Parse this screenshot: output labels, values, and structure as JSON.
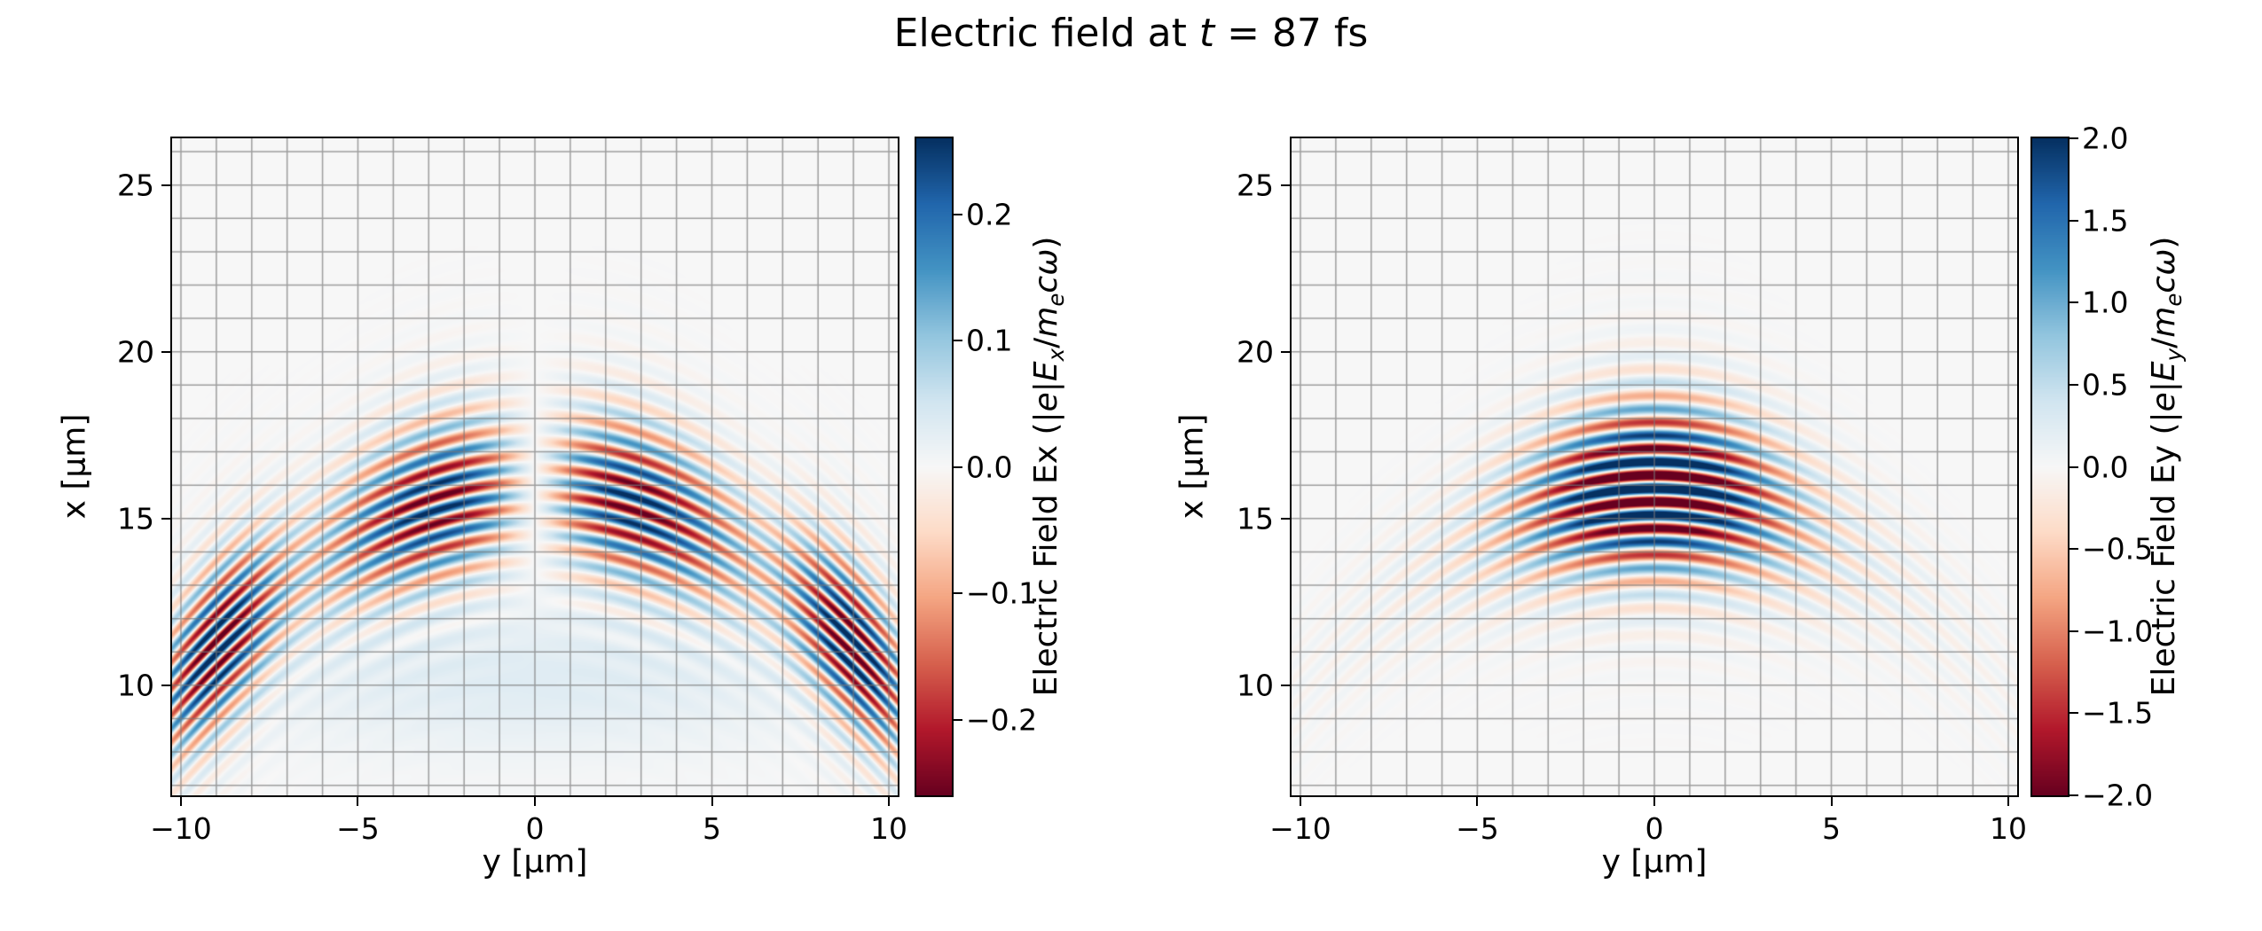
{
  "chart_data": {
    "type": "heatmap",
    "title_text": "Electric field at t = 87 fs",
    "title_parts": [
      {
        "t": "Electric field at "
      },
      {
        "t": "t",
        "i": true
      },
      {
        "t": " = 87 fs"
      }
    ],
    "time_fs": 87,
    "colormap": {
      "name": "RdBu",
      "stops": [
        {
          "pos": 0.0,
          "rgb": [
            103,
            0,
            31
          ]
        },
        {
          "pos": 0.1,
          "rgb": [
            178,
            24,
            43
          ]
        },
        {
          "pos": 0.2,
          "rgb": [
            214,
            96,
            77
          ]
        },
        {
          "pos": 0.3,
          "rgb": [
            244,
            165,
            130
          ]
        },
        {
          "pos": 0.4,
          "rgb": [
            253,
            219,
            199
          ]
        },
        {
          "pos": 0.5,
          "rgb": [
            247,
            247,
            247
          ]
        },
        {
          "pos": 0.6,
          "rgb": [
            209,
            229,
            240
          ]
        },
        {
          "pos": 0.7,
          "rgb": [
            146,
            197,
            222
          ]
        },
        {
          "pos": 0.8,
          "rgb": [
            67,
            147,
            195
          ]
        },
        {
          "pos": 0.9,
          "rgb": [
            33,
            102,
            172
          ]
        },
        {
          "pos": 1.0,
          "rgb": [
            5,
            48,
            97
          ]
        }
      ]
    },
    "grid": {
      "spacing_um": 1,
      "color": "rgba(120,120,120,0.7)",
      "line_width": 1.5
    },
    "plots": [
      {
        "id": "ex",
        "xlabel": "y [μm]",
        "ylabel": "x [μm]",
        "x_range": [
          -10.25,
          10.25
        ],
        "y_range": [
          6.7,
          26.4
        ],
        "x_ticks": {
          "values": [
            -10,
            -5,
            0,
            5,
            10
          ],
          "labels": [
            "−10",
            "−5",
            "0",
            "5",
            "10"
          ]
        },
        "y_ticks": {
          "values": [
            25,
            20,
            15,
            10
          ],
          "labels": [
            "25",
            "20",
            "15",
            "10"
          ]
        },
        "colorbar": {
          "vmin": -0.26,
          "vmax": 0.26,
          "ticks": {
            "values": [
              0.2,
              0.1,
              0.0,
              -0.1,
              -0.2
            ],
            "labels": [
              "0.2",
              "0.1",
              "0.0",
              "−0.1",
              "−0.2"
            ]
          },
          "label_text": "Electric Field Ex (|e|Ex/mecω)",
          "label_parts": [
            {
              "t": "Electric Field Ex (|"
            },
            {
              "t": "e",
              "i": true
            },
            {
              "t": "|"
            },
            {
              "t": "E",
              "i": true
            },
            {
              "t": "x",
              "i": true,
              "sub": true
            },
            {
              "t": "/"
            },
            {
              "t": "m",
              "i": true
            },
            {
              "t": "e",
              "i": true,
              "sub": true
            },
            {
              "t": "c",
              "i": true
            },
            {
              "t": "ω",
              "i": true
            },
            {
              "t": ")"
            }
          ]
        },
        "field_model": {
          "component": "Ex",
          "wavelength": 0.8,
          "x0": 15.9,
          "R": 8.5,
          "sigma_long": 1.6,
          "tail_amp": 0.05,
          "tail_sigma": 3.4,
          "lobe_scale": 1.72,
          "lobe_width": 4.0,
          "edge_amp": 1.05,
          "edge_pos": 9.0,
          "edge_width": 1.7,
          "amp": 0.27,
          "bg_amp": 0.032,
          "bg_x": 10.2,
          "bg_sx": 2.2,
          "bg_sy": 8.5
        }
      },
      {
        "id": "ey",
        "xlabel": "y [μm]",
        "ylabel": "x [μm]",
        "x_range": [
          -10.25,
          10.25
        ],
        "y_range": [
          6.7,
          26.4
        ],
        "x_ticks": {
          "values": [
            -10,
            -5,
            0,
            5,
            10
          ],
          "labels": [
            "−10",
            "−5",
            "0",
            "5",
            "10"
          ]
        },
        "y_ticks": {
          "values": [
            25,
            20,
            15,
            10
          ],
          "labels": [
            "25",
            "20",
            "15",
            "10"
          ]
        },
        "colorbar": {
          "vmin": -2.0,
          "vmax": 2.0,
          "ticks": {
            "values": [
              2.0,
              1.5,
              1.0,
              0.5,
              0.0,
              -0.5,
              -1.0,
              -1.5,
              -2.0
            ],
            "labels": [
              "2.0",
              "1.5",
              "1.0",
              "0.5",
              "0.0",
              "−0.5",
              "−1.0",
              "−1.5",
              "−2.0"
            ]
          },
          "label_text": "Electric Field Ey (|e|Ey/mecω)",
          "label_parts": [
            {
              "t": "Electric Field Ey (|"
            },
            {
              "t": "e",
              "i": true
            },
            {
              "t": "|"
            },
            {
              "t": "E",
              "i": true
            },
            {
              "t": "y",
              "i": true,
              "sub": true
            },
            {
              "t": "/"
            },
            {
              "t": "m",
              "i": true
            },
            {
              "t": "e",
              "i": true,
              "sub": true
            },
            {
              "t": "c",
              "i": true
            },
            {
              "t": "ω",
              "i": true
            },
            {
              "t": ")"
            }
          ]
        },
        "field_model": {
          "component": "Ey",
          "wavelength": 0.8,
          "x0": 15.9,
          "R": 8.5,
          "sigma_long": 1.6,
          "tail_amp": 0.045,
          "tail_sigma": 3.4,
          "waist": 3.3,
          "wing_amp": 0.14,
          "wing_width": 8.0,
          "amp": 2.6
        }
      }
    ]
  }
}
